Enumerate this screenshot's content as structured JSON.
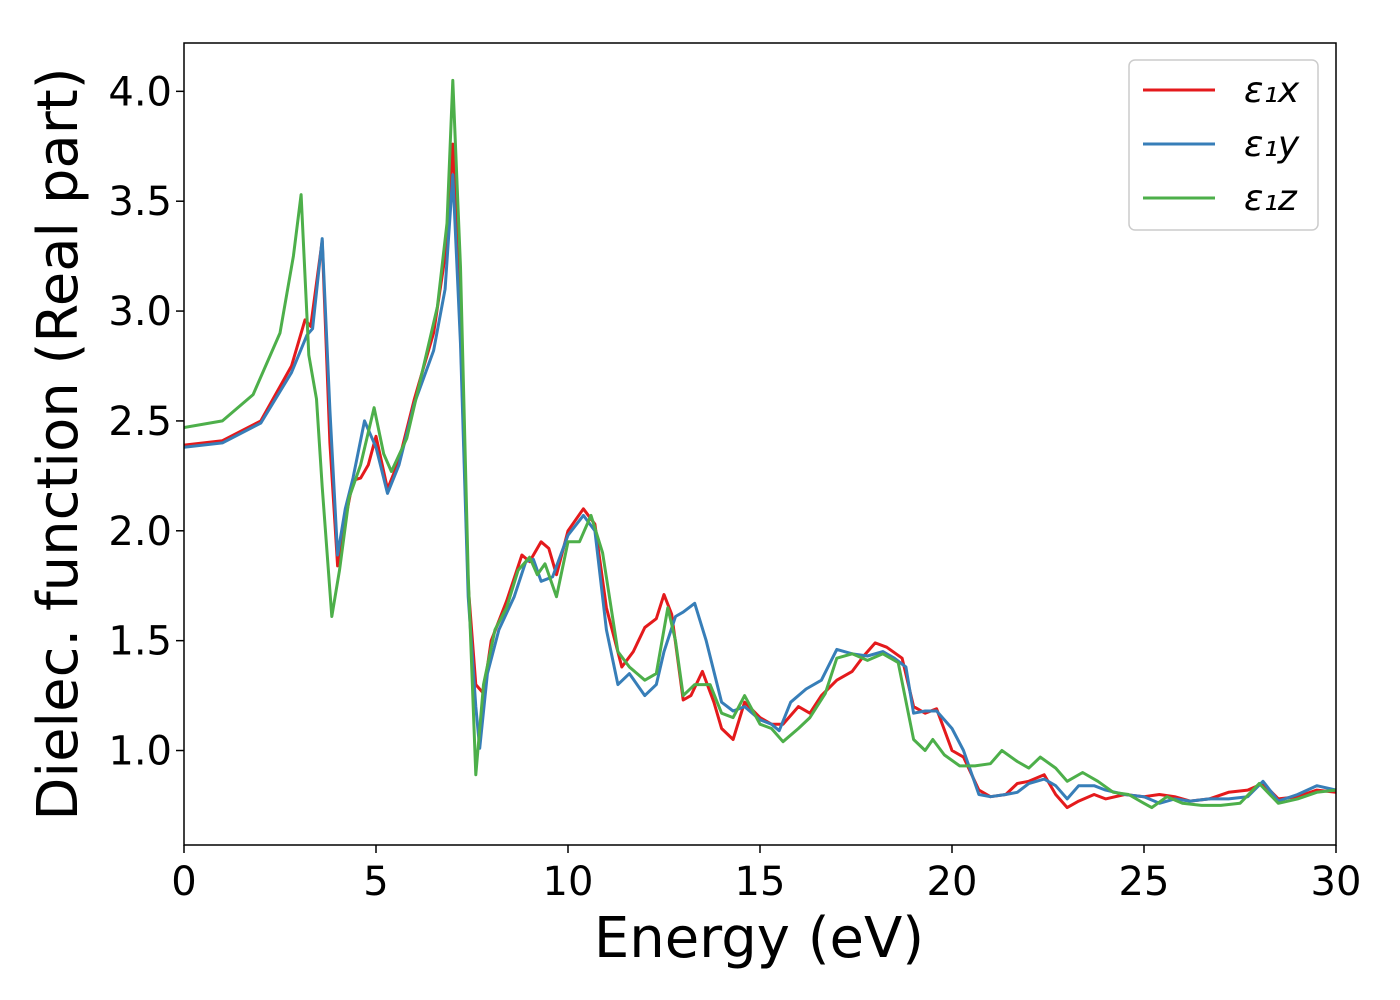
{
  "chart_data": {
    "type": "line",
    "title": "",
    "xlabel": "Energy (eV)",
    "ylabel": "Dielec. function (Real part)",
    "xlim": [
      0,
      30
    ],
    "ylim": [
      0.57,
      4.22
    ],
    "xticks": [
      0,
      5,
      10,
      15,
      20,
      25,
      30
    ],
    "yticks": [
      1.0,
      1.5,
      2.0,
      2.5,
      3.0,
      3.5,
      4.0
    ],
    "xtick_labels": [
      "0",
      "5",
      "10",
      "15",
      "20",
      "25",
      "30"
    ],
    "ytick_labels": [
      "1.0",
      "1.5",
      "2.0",
      "2.5",
      "3.0",
      "3.5",
      "4.0"
    ],
    "grid": false,
    "legend_position": "top-right",
    "series": [
      {
        "name": "ε₁x",
        "color": "#e41a1c",
        "points": [
          [
            0,
            2.39
          ],
          [
            1,
            2.41
          ],
          [
            2,
            2.5
          ],
          [
            2.8,
            2.75
          ],
          [
            3.15,
            2.96
          ],
          [
            3.3,
            2.93
          ],
          [
            3.6,
            3.32
          ],
          [
            3.8,
            2.4
          ],
          [
            4.0,
            1.84
          ],
          [
            4.2,
            2.05
          ],
          [
            4.4,
            2.23
          ],
          [
            4.6,
            2.24
          ],
          [
            4.8,
            2.3
          ],
          [
            5.0,
            2.43
          ],
          [
            5.3,
            2.19
          ],
          [
            5.6,
            2.32
          ],
          [
            6.0,
            2.6
          ],
          [
            6.5,
            2.9
          ],
          [
            6.8,
            3.25
          ],
          [
            7.0,
            3.76
          ],
          [
            7.2,
            2.9
          ],
          [
            7.4,
            1.75
          ],
          [
            7.6,
            1.3
          ],
          [
            7.8,
            1.26
          ],
          [
            8.0,
            1.5
          ],
          [
            8.4,
            1.68
          ],
          [
            8.8,
            1.89
          ],
          [
            9.0,
            1.86
          ],
          [
            9.3,
            1.95
          ],
          [
            9.5,
            1.92
          ],
          [
            9.7,
            1.8
          ],
          [
            10.0,
            2.0
          ],
          [
            10.4,
            2.1
          ],
          [
            10.7,
            2.03
          ],
          [
            11.0,
            1.65
          ],
          [
            11.4,
            1.38
          ],
          [
            11.7,
            1.45
          ],
          [
            12.0,
            1.56
          ],
          [
            12.3,
            1.6
          ],
          [
            12.5,
            1.71
          ],
          [
            12.7,
            1.62
          ],
          [
            13.0,
            1.23
          ],
          [
            13.2,
            1.25
          ],
          [
            13.5,
            1.36
          ],
          [
            13.8,
            1.22
          ],
          [
            14.0,
            1.1
          ],
          [
            14.3,
            1.05
          ],
          [
            14.6,
            1.22
          ],
          [
            15.0,
            1.15
          ],
          [
            15.3,
            1.12
          ],
          [
            15.6,
            1.12
          ],
          [
            16.0,
            1.2
          ],
          [
            16.3,
            1.17
          ],
          [
            16.6,
            1.25
          ],
          [
            17.0,
            1.32
          ],
          [
            17.4,
            1.36
          ],
          [
            17.7,
            1.43
          ],
          [
            18.0,
            1.49
          ],
          [
            18.3,
            1.47
          ],
          [
            18.7,
            1.42
          ],
          [
            19.0,
            1.2
          ],
          [
            19.3,
            1.17
          ],
          [
            19.6,
            1.19
          ],
          [
            20.0,
            1.0
          ],
          [
            20.3,
            0.97
          ],
          [
            20.7,
            0.82
          ],
          [
            21.0,
            0.79
          ],
          [
            21.4,
            0.8
          ],
          [
            21.7,
            0.85
          ],
          [
            22.0,
            0.86
          ],
          [
            22.4,
            0.89
          ],
          [
            22.7,
            0.8
          ],
          [
            23.0,
            0.74
          ],
          [
            23.3,
            0.77
          ],
          [
            23.7,
            0.8
          ],
          [
            24.0,
            0.78
          ],
          [
            24.5,
            0.8
          ],
          [
            25.0,
            0.79
          ],
          [
            25.4,
            0.8
          ],
          [
            25.8,
            0.79
          ],
          [
            26.2,
            0.77
          ],
          [
            26.7,
            0.78
          ],
          [
            27.2,
            0.81
          ],
          [
            27.7,
            0.82
          ],
          [
            28.1,
            0.85
          ],
          [
            28.5,
            0.78
          ],
          [
            29.0,
            0.79
          ],
          [
            29.5,
            0.82
          ],
          [
            30.0,
            0.81
          ]
        ]
      },
      {
        "name": "ε₁y",
        "color": "#377eb8",
        "points": [
          [
            0,
            2.38
          ],
          [
            1,
            2.4
          ],
          [
            2,
            2.49
          ],
          [
            2.8,
            2.72
          ],
          [
            3.2,
            2.89
          ],
          [
            3.35,
            2.92
          ],
          [
            3.6,
            3.33
          ],
          [
            3.8,
            2.55
          ],
          [
            4.0,
            1.89
          ],
          [
            4.2,
            2.1
          ],
          [
            4.4,
            2.24
          ],
          [
            4.7,
            2.5
          ],
          [
            5.0,
            2.38
          ],
          [
            5.3,
            2.17
          ],
          [
            5.6,
            2.3
          ],
          [
            6.0,
            2.58
          ],
          [
            6.5,
            2.82
          ],
          [
            6.8,
            3.1
          ],
          [
            7.0,
            3.62
          ],
          [
            7.2,
            2.85
          ],
          [
            7.4,
            1.7
          ],
          [
            7.6,
            1.2
          ],
          [
            7.7,
            1.01
          ],
          [
            7.9,
            1.35
          ],
          [
            8.2,
            1.55
          ],
          [
            8.6,
            1.7
          ],
          [
            8.9,
            1.86
          ],
          [
            9.1,
            1.87
          ],
          [
            9.3,
            1.77
          ],
          [
            9.6,
            1.79
          ],
          [
            10.0,
            1.98
          ],
          [
            10.4,
            2.07
          ],
          [
            10.7,
            2.0
          ],
          [
            11.0,
            1.55
          ],
          [
            11.3,
            1.3
          ],
          [
            11.6,
            1.35
          ],
          [
            12.0,
            1.25
          ],
          [
            12.3,
            1.3
          ],
          [
            12.5,
            1.45
          ],
          [
            12.8,
            1.61
          ],
          [
            13.0,
            1.63
          ],
          [
            13.3,
            1.67
          ],
          [
            13.6,
            1.5
          ],
          [
            14.0,
            1.22
          ],
          [
            14.3,
            1.18
          ],
          [
            14.6,
            1.2
          ],
          [
            15.0,
            1.14
          ],
          [
            15.3,
            1.12
          ],
          [
            15.5,
            1.09
          ],
          [
            15.8,
            1.22
          ],
          [
            16.2,
            1.28
          ],
          [
            16.6,
            1.32
          ],
          [
            17.0,
            1.46
          ],
          [
            17.4,
            1.44
          ],
          [
            17.8,
            1.43
          ],
          [
            18.2,
            1.45
          ],
          [
            18.5,
            1.42
          ],
          [
            18.8,
            1.38
          ],
          [
            19.0,
            1.17
          ],
          [
            19.3,
            1.18
          ],
          [
            19.6,
            1.18
          ],
          [
            20.0,
            1.1
          ],
          [
            20.3,
            1.0
          ],
          [
            20.7,
            0.8
          ],
          [
            21.0,
            0.79
          ],
          [
            21.4,
            0.8
          ],
          [
            21.7,
            0.81
          ],
          [
            22.0,
            0.85
          ],
          [
            22.4,
            0.87
          ],
          [
            22.7,
            0.84
          ],
          [
            23.0,
            0.78
          ],
          [
            23.3,
            0.84
          ],
          [
            23.7,
            0.84
          ],
          [
            24.0,
            0.82
          ],
          [
            24.5,
            0.8
          ],
          [
            25.0,
            0.79
          ],
          [
            25.4,
            0.76
          ],
          [
            25.8,
            0.78
          ],
          [
            26.2,
            0.77
          ],
          [
            26.7,
            0.78
          ],
          [
            27.2,
            0.78
          ],
          [
            27.7,
            0.79
          ],
          [
            28.1,
            0.86
          ],
          [
            28.5,
            0.77
          ],
          [
            29.0,
            0.8
          ],
          [
            29.5,
            0.84
          ],
          [
            30.0,
            0.82
          ]
        ]
      },
      {
        "name": "ε₁z",
        "color": "#4daf4a",
        "points": [
          [
            0,
            2.47
          ],
          [
            1,
            2.5
          ],
          [
            1.8,
            2.62
          ],
          [
            2.5,
            2.9
          ],
          [
            2.85,
            3.25
          ],
          [
            3.05,
            3.53
          ],
          [
            3.25,
            2.8
          ],
          [
            3.45,
            2.6
          ],
          [
            3.6,
            2.2
          ],
          [
            3.85,
            1.61
          ],
          [
            4.05,
            1.82
          ],
          [
            4.3,
            2.15
          ],
          [
            4.6,
            2.3
          ],
          [
            4.95,
            2.56
          ],
          [
            5.2,
            2.35
          ],
          [
            5.4,
            2.27
          ],
          [
            5.8,
            2.42
          ],
          [
            6.2,
            2.72
          ],
          [
            6.6,
            3.02
          ],
          [
            6.85,
            3.4
          ],
          [
            7.0,
            4.05
          ],
          [
            7.2,
            3.2
          ],
          [
            7.4,
            1.8
          ],
          [
            7.6,
            0.89
          ],
          [
            7.8,
            1.3
          ],
          [
            8.1,
            1.55
          ],
          [
            8.4,
            1.65
          ],
          [
            8.7,
            1.82
          ],
          [
            9.0,
            1.88
          ],
          [
            9.2,
            1.8
          ],
          [
            9.4,
            1.85
          ],
          [
            9.7,
            1.7
          ],
          [
            10.0,
            1.95
          ],
          [
            10.3,
            1.95
          ],
          [
            10.6,
            2.07
          ],
          [
            10.9,
            1.9
          ],
          [
            11.3,
            1.45
          ],
          [
            11.6,
            1.38
          ],
          [
            12.0,
            1.32
          ],
          [
            12.3,
            1.35
          ],
          [
            12.6,
            1.65
          ],
          [
            12.8,
            1.5
          ],
          [
            13.0,
            1.25
          ],
          [
            13.3,
            1.3
          ],
          [
            13.7,
            1.3
          ],
          [
            14.0,
            1.17
          ],
          [
            14.3,
            1.15
          ],
          [
            14.6,
            1.25
          ],
          [
            15.0,
            1.12
          ],
          [
            15.3,
            1.1
          ],
          [
            15.6,
            1.04
          ],
          [
            16.0,
            1.1
          ],
          [
            16.3,
            1.15
          ],
          [
            16.7,
            1.26
          ],
          [
            17.0,
            1.42
          ],
          [
            17.4,
            1.44
          ],
          [
            17.8,
            1.41
          ],
          [
            18.2,
            1.44
          ],
          [
            18.6,
            1.4
          ],
          [
            19.0,
            1.05
          ],
          [
            19.3,
            1.0
          ],
          [
            19.5,
            1.05
          ],
          [
            19.8,
            0.98
          ],
          [
            20.2,
            0.93
          ],
          [
            20.6,
            0.93
          ],
          [
            21.0,
            0.94
          ],
          [
            21.3,
            1.0
          ],
          [
            21.7,
            0.95
          ],
          [
            22.0,
            0.92
          ],
          [
            22.3,
            0.97
          ],
          [
            22.7,
            0.92
          ],
          [
            23.0,
            0.86
          ],
          [
            23.4,
            0.9
          ],
          [
            23.8,
            0.86
          ],
          [
            24.2,
            0.81
          ],
          [
            24.6,
            0.8
          ],
          [
            25.0,
            0.76
          ],
          [
            25.2,
            0.74
          ],
          [
            25.6,
            0.79
          ],
          [
            26.0,
            0.76
          ],
          [
            26.5,
            0.75
          ],
          [
            27.0,
            0.75
          ],
          [
            27.5,
            0.76
          ],
          [
            28.0,
            0.85
          ],
          [
            28.5,
            0.76
          ],
          [
            29.0,
            0.78
          ],
          [
            29.5,
            0.81
          ],
          [
            30.0,
            0.82
          ]
        ]
      }
    ]
  }
}
